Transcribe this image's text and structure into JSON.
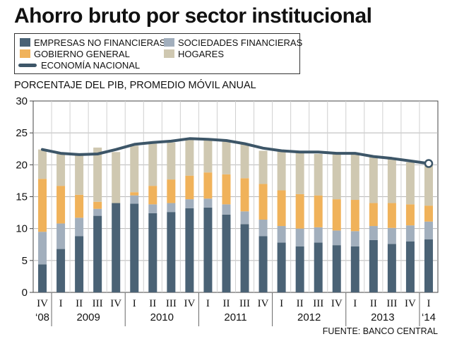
{
  "title": "Ahorro bruto por sector institucional",
  "subtitle": "PORCENTAJE DEL PIB, PROMEDIO MÓVIL ANUAL",
  "source": "FUENTE: BANCO CENTRAL",
  "legend": [
    {
      "label": "EMPRESAS NO FINANCIERAS",
      "color": "#4a6275",
      "kind": "box"
    },
    {
      "label": "SOCIEDADES FINANCIERAS",
      "color": "#a2afbd",
      "kind": "box"
    },
    {
      "label": "GOBIERNO GENERAL",
      "color": "#f0b25a",
      "kind": "box"
    },
    {
      "label": "HOGARES",
      "color": "#cfc8b1",
      "kind": "box"
    },
    {
      "label": "ECONOMÍA NACIONAL",
      "color": "#3d5668",
      "kind": "line"
    }
  ],
  "chart_data": {
    "type": "bar",
    "stacked": true,
    "ylim": [
      0,
      30
    ],
    "yticks": [
      "0",
      "5",
      "10",
      "15",
      "20",
      "25",
      "30"
    ],
    "ytick_values": [
      0,
      5,
      10,
      15,
      20,
      25,
      30
    ],
    "categories": [
      "IV",
      "I",
      "II",
      "III",
      "IV",
      "I",
      "II",
      "III",
      "IV",
      "I",
      "II",
      "III",
      "IV",
      "I",
      "II",
      "III",
      "IV",
      "I",
      "II",
      "III",
      "IV",
      "I"
    ],
    "year_labels": [
      {
        "label": "‘08",
        "index": 0
      },
      {
        "label": "2009",
        "index": 2.5
      },
      {
        "label": "2010",
        "index": 6.5
      },
      {
        "label": "2011",
        "index": 10.5
      },
      {
        "label": "2012",
        "index": 14.5
      },
      {
        "label": "2013",
        "index": 18.5
      },
      {
        "label": "‘14",
        "index": 21
      }
    ],
    "year_separators": [
      0.5,
      4.5,
      8.5,
      12.5,
      16.5,
      20.5
    ],
    "series": [
      {
        "name": "EMPRESAS NO FINANCIERAS",
        "color": "#4a6275",
        "values": [
          4.4,
          6.8,
          8.8,
          12.0,
          14.0,
          13.9,
          12.4,
          12.6,
          13.2,
          13.3,
          12.2,
          10.7,
          8.8,
          7.8,
          7.2,
          7.8,
          7.4,
          7.2,
          8.2,
          7.6,
          8.0,
          8.3
        ]
      },
      {
        "name": "SOCIEDADES FINANCIERAS",
        "color": "#a2afbd",
        "values": [
          5.1,
          4.0,
          2.9,
          1.1,
          0.0,
          1.3,
          1.4,
          1.4,
          1.4,
          1.4,
          1.6,
          2.0,
          2.6,
          2.6,
          2.8,
          2.4,
          2.3,
          2.4,
          2.2,
          2.5,
          2.5,
          2.8
        ]
      },
      {
        "name": "GOBIERNO GENERAL",
        "color": "#f0b25a",
        "values": [
          8.3,
          5.9,
          3.6,
          1.1,
          0.0,
          0.5,
          2.9,
          3.7,
          3.7,
          4.1,
          4.7,
          5.2,
          5.6,
          5.6,
          5.4,
          5.0,
          4.9,
          4.9,
          3.6,
          3.9,
          3.3,
          2.5
        ]
      },
      {
        "name": "HOGARES",
        "color": "#cfc8b1",
        "values": [
          4.6,
          5.0,
          6.2,
          8.5,
          8.0,
          7.3,
          6.6,
          5.8,
          5.7,
          5.1,
          5.2,
          5.3,
          5.2,
          6.1,
          6.5,
          6.5,
          7.2,
          7.3,
          7.2,
          7.1,
          6.6,
          6.4
        ]
      }
    ],
    "line": {
      "name": "ECONOMÍA NACIONAL",
      "color": "#3d5668",
      "values": [
        22.4,
        21.8,
        21.6,
        21.7,
        22.4,
        23.2,
        23.5,
        23.7,
        24.1,
        24.0,
        23.8,
        23.3,
        22.6,
        22.2,
        22.0,
        22.0,
        21.8,
        21.8,
        21.3,
        21.0,
        20.6,
        20.2
      ]
    }
  }
}
